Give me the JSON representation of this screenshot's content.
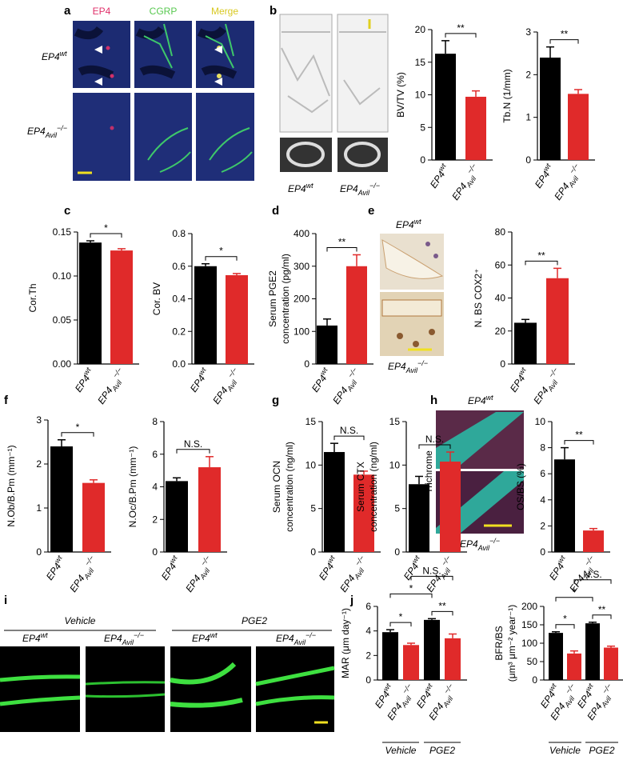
{
  "figure": {
    "panel_labels": [
      "a",
      "b",
      "c",
      "d",
      "e",
      "f",
      "g",
      "h",
      "i",
      "j"
    ],
    "a": {
      "channels": [
        "EP4",
        "CGRP",
        "Merge"
      ],
      "rows": [
        {
          "base": "EP4",
          "sup": "wt"
        },
        {
          "base": "EP4",
          "sub": "Avil",
          "sup": "−/−"
        }
      ]
    },
    "b_images": [
      {
        "base": "EP4",
        "sup": "wt"
      },
      {
        "base": "EP4",
        "sub": "Avil",
        "sup": "−/−"
      }
    ],
    "e_images": [
      {
        "base": "EP4",
        "sup": "wt"
      },
      {
        "base": "EP4",
        "sub": "Avil",
        "sup": "−/−"
      }
    ],
    "h": {
      "stain": "Trichrome",
      "images": [
        {
          "base": "EP4",
          "sup": "wt"
        },
        {
          "base": "EP4",
          "sub": "Avil",
          "sup": "−/−"
        }
      ]
    },
    "i": {
      "groups": [
        "Vehicle",
        "PGE2"
      ],
      "images": [
        {
          "base": "EP4",
          "sup": "wt"
        },
        {
          "base": "EP4",
          "sub": "Avil",
          "sup": "−/−"
        },
        {
          "base": "EP4",
          "sup": "wt"
        },
        {
          "base": "EP4",
          "sub": "Avil",
          "sup": "−/−"
        }
      ]
    }
  },
  "chart_data": [
    {
      "type": "bar",
      "y_label": [
        "BV/TV (%)"
      ],
      "categories": [
        {
          "base": "EP4",
          "sup": "wt"
        },
        {
          "base": "EP4",
          "sub": "Avil",
          "sup": "−/−"
        }
      ],
      "values": [
        16.3,
        9.7
      ],
      "errors": [
        2.0,
        0.9
      ],
      "colors": [
        "#000000",
        "#e02a2a"
      ],
      "ylim": [
        0,
        20
      ],
      "yticks": [
        0,
        5,
        10,
        15,
        20
      ],
      "comparisons": [
        {
          "pair": [
            0,
            1
          ],
          "label": "**"
        }
      ]
    },
    {
      "type": "bar",
      "y_label": [
        "Tb.N (1/mm)"
      ],
      "categories": [
        {
          "base": "EP4",
          "sup": "wt"
        },
        {
          "base": "EP4",
          "sub": "Avil",
          "sup": "−/−"
        }
      ],
      "values": [
        2.4,
        1.55
      ],
      "errors": [
        0.25,
        0.1
      ],
      "colors": [
        "#000000",
        "#e02a2a"
      ],
      "ylim": [
        0,
        3
      ],
      "yticks": [
        0,
        1,
        2,
        3
      ],
      "comparisons": [
        {
          "pair": [
            0,
            1
          ],
          "label": "**"
        }
      ]
    },
    {
      "type": "bar",
      "y_label": [
        "Cor.Th"
      ],
      "categories": [
        {
          "base": "EP4",
          "sup": "wt"
        },
        {
          "base": "EP4",
          "sub": "Avil",
          "sup": "−/−"
        }
      ],
      "values": [
        0.138,
        0.129
      ],
      "errors": [
        0.002,
        0.002
      ],
      "colors": [
        "#000000",
        "#e02a2a"
      ],
      "ylim": [
        0,
        0.15
      ],
      "yticks": [
        {
          "value": 0,
          "label": "0.00"
        },
        {
          "value": 0.05,
          "label": "0.05"
        },
        {
          "value": 0.1,
          "label": "0.10"
        },
        0.15
      ],
      "comparisons": [
        {
          "pair": [
            0,
            1
          ],
          "label": "*"
        }
      ]
    },
    {
      "type": "bar",
      "y_label": [
        "Cor. BV"
      ],
      "categories": [
        {
          "base": "EP4",
          "sup": "wt"
        },
        {
          "base": "EP4",
          "sub": "Avil",
          "sup": "−/−"
        }
      ],
      "values": [
        0.6,
        0.545
      ],
      "errors": [
        0.015,
        0.01
      ],
      "colors": [
        "#000000",
        "#e02a2a"
      ],
      "ylim": [
        0,
        0.8
      ],
      "yticks": [
        {
          "value": 0,
          "label": "0.0"
        },
        0.2,
        0.4,
        0.6,
        0.8
      ],
      "comparisons": [
        {
          "pair": [
            0,
            1
          ],
          "label": "*"
        }
      ]
    },
    {
      "type": "bar",
      "y_label": [
        "Serum PGE2",
        "concentration (pg/ml)"
      ],
      "categories": [
        {
          "base": "EP4",
          "sup": "wt"
        },
        {
          "base": "EP4",
          "sub": "Avil",
          "sup": "−/−"
        }
      ],
      "values": [
        118,
        300
      ],
      "errors": [
        20,
        35
      ],
      "colors": [
        "#000000",
        "#e02a2a"
      ],
      "ylim": [
        0,
        400
      ],
      "yticks": [
        0,
        100,
        200,
        300,
        400
      ],
      "comparisons": [
        {
          "pair": [
            0,
            1
          ],
          "label": "**"
        }
      ]
    },
    {
      "type": "bar",
      "y_label": [
        "N. BS COX2⁺"
      ],
      "categories": [
        {
          "base": "EP4",
          "sup": "wt"
        },
        {
          "base": "EP4",
          "sub": "Avil",
          "sup": "−/−"
        }
      ],
      "values": [
        25,
        52
      ],
      "errors": [
        2,
        6
      ],
      "colors": [
        "#000000",
        "#e02a2a"
      ],
      "ylim": [
        0,
        80
      ],
      "yticks": [
        0,
        20,
        40,
        60,
        80
      ],
      "comparisons": [
        {
          "pair": [
            0,
            1
          ],
          "label": "**"
        }
      ]
    },
    {
      "type": "bar",
      "y_label": [
        "N.Ob/B.Pm (mm⁻¹)"
      ],
      "categories": [
        {
          "base": "EP4",
          "sup": "wt"
        },
        {
          "base": "EP4",
          "sub": "Avil",
          "sup": "−/−"
        }
      ],
      "values": [
        2.4,
        1.57
      ],
      "errors": [
        0.15,
        0.07
      ],
      "colors": [
        "#000000",
        "#e02a2a"
      ],
      "ylim": [
        0,
        3
      ],
      "yticks": [
        0,
        1,
        2,
        3
      ],
      "comparisons": [
        {
          "pair": [
            0,
            1
          ],
          "label": "*"
        }
      ]
    },
    {
      "type": "bar",
      "y_label": [
        "N.Oc/B.Pm (mm⁻¹)"
      ],
      "categories": [
        {
          "base": "EP4",
          "sup": "wt"
        },
        {
          "base": "EP4",
          "sub": "Avil",
          "sup": "−/−"
        }
      ],
      "values": [
        4.35,
        5.2
      ],
      "errors": [
        0.2,
        0.65
      ],
      "colors": [
        "#000000",
        "#e02a2a"
      ],
      "ylim": [
        0,
        8
      ],
      "yticks": [
        0,
        2,
        4,
        6,
        8
      ],
      "comparisons": [
        {
          "pair": [
            0,
            1
          ],
          "label": "N.S."
        }
      ]
    },
    {
      "type": "bar",
      "y_label": [
        "Serum OCN",
        "concentration (ng/ml)"
      ],
      "categories": [
        {
          "base": "EP4",
          "sup": "wt"
        },
        {
          "base": "EP4",
          "sub": "Avil",
          "sup": "−/−"
        }
      ],
      "values": [
        11.5,
        8.9
      ],
      "errors": [
        1.0,
        0.4
      ],
      "colors": [
        "#000000",
        "#e02a2a"
      ],
      "ylim": [
        0,
        15
      ],
      "yticks": [
        0,
        5,
        10,
        15
      ],
      "comparisons": [
        {
          "pair": [
            0,
            1
          ],
          "label": "N.S."
        }
      ]
    },
    {
      "type": "bar",
      "y_label": [
        "Serum CTX",
        "concentration (ng/ml)"
      ],
      "categories": [
        {
          "base": "EP4",
          "sup": "wt"
        },
        {
          "base": "EP4",
          "sub": "Avil",
          "sup": "−/−"
        }
      ],
      "values": [
        7.8,
        10.4
      ],
      "errors": [
        0.9,
        1.1
      ],
      "colors": [
        "#000000",
        "#e02a2a"
      ],
      "ylim": [
        0,
        15
      ],
      "yticks": [
        0,
        5,
        10,
        15
      ],
      "comparisons": [
        {
          "pair": [
            0,
            1
          ],
          "label": "N.S."
        }
      ]
    },
    {
      "type": "bar",
      "y_label": [
        "OS/BS (%)"
      ],
      "categories": [
        {
          "base": "EP4",
          "sup": "wt"
        },
        {
          "base": "EP4",
          "sub": "Avil",
          "sup": "−/−"
        }
      ],
      "values": [
        7.1,
        1.65
      ],
      "errors": [
        0.9,
        0.15
      ],
      "colors": [
        "#000000",
        "#e02a2a"
      ],
      "ylim": [
        0,
        10
      ],
      "yticks": [
        0,
        2,
        4,
        6,
        8,
        10
      ],
      "comparisons": [
        {
          "pair": [
            0,
            1
          ],
          "label": "**"
        }
      ]
    },
    {
      "type": "bar",
      "y_label": [
        "MAR (μm day⁻¹)"
      ],
      "categories": [
        {
          "base": "EP4",
          "sup": "wt"
        },
        {
          "base": "EP4",
          "sub": "Avil",
          "sup": "−/−"
        },
        {
          "base": "EP4",
          "sup": "wt"
        },
        {
          "base": "EP4",
          "sub": "Avil",
          "sup": "−/−"
        }
      ],
      "groups": [
        "Vehicle",
        "PGE2"
      ],
      "values": [
        3.9,
        2.85,
        4.9,
        3.4
      ],
      "errors": [
        0.2,
        0.15,
        0.1,
        0.35
      ],
      "colors": [
        "#000000",
        "#e02a2a",
        "#000000",
        "#e02a2a"
      ],
      "ylim": [
        0,
        6
      ],
      "yticks": [
        0,
        2,
        4,
        6
      ],
      "comparisons": [
        {
          "pair": [
            0,
            1
          ],
          "label": "*"
        },
        {
          "pair": [
            2,
            3
          ],
          "label": "**"
        },
        {
          "pair": [
            0,
            2
          ],
          "label": "*"
        },
        {
          "pair": [
            1,
            3
          ],
          "label": "N.S."
        }
      ]
    },
    {
      "type": "bar",
      "y_label": [
        "BFR/BS",
        "(μm³ μm⁻² year⁻¹)"
      ],
      "categories": [
        {
          "base": "EP4",
          "sup": "wt"
        },
        {
          "base": "EP4",
          "sub": "Avil",
          "sup": "−/−"
        },
        {
          "base": "EP4",
          "sup": "wt"
        },
        {
          "base": "EP4",
          "sub": "Avil",
          "sup": "−/−"
        }
      ],
      "groups": [
        "Vehicle",
        "PGE2"
      ],
      "values": [
        128,
        72,
        154,
        88
      ],
      "errors": [
        3,
        7,
        3,
        4
      ],
      "colors": [
        "#000000",
        "#e02a2a",
        "#000000",
        "#e02a2a"
      ],
      "ylim": [
        0,
        200
      ],
      "yticks": [
        0,
        50,
        100,
        150,
        200
      ],
      "comparisons": [
        {
          "pair": [
            0,
            1
          ],
          "label": "*"
        },
        {
          "pair": [
            2,
            3
          ],
          "label": "**"
        },
        {
          "pair": [
            0,
            2
          ],
          "label": "*"
        },
        {
          "pair": [
            1,
            3
          ],
          "label": "N.S."
        }
      ]
    }
  ]
}
